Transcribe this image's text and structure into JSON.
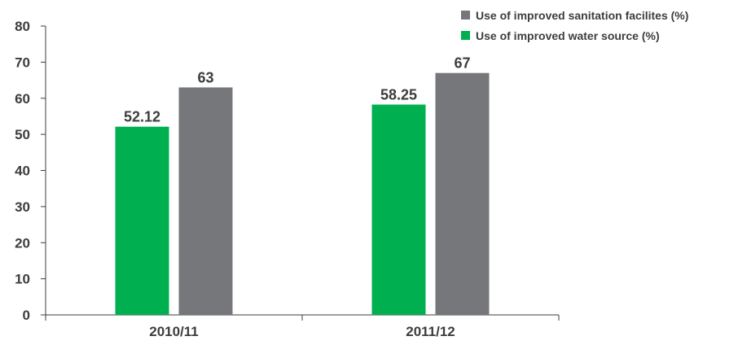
{
  "chart_data": {
    "type": "bar",
    "title": "",
    "xlabel": "",
    "ylabel": "",
    "categories": [
      "2010/11",
      "2011/12"
    ],
    "series": [
      {
        "name": "Use of improved water source (%)",
        "values": [
          52.12,
          58.25
        ],
        "color": "#00b050"
      },
      {
        "name": "Use of improved sanitation facilites (%)",
        "values": [
          63,
          67
        ],
        "color": "#76777a"
      }
    ],
    "data_labels": [
      [
        "52.12",
        "58.25"
      ],
      [
        "63",
        "67"
      ]
    ],
    "ylim": [
      0,
      80
    ],
    "yticks": [
      0,
      10,
      20,
      30,
      40,
      50,
      60,
      70,
      80
    ],
    "grid": false,
    "legend_position": "top-right",
    "legend_order": [
      1,
      0
    ],
    "colors": {
      "axis": "#3d3d3d",
      "text": "#3d3d3d"
    }
  }
}
